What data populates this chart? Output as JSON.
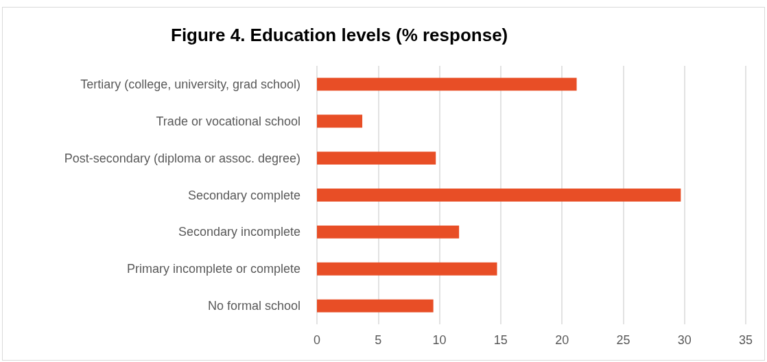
{
  "chart_data": {
    "type": "bar",
    "orientation": "horizontal",
    "title": "Figure 4. Education levels (% response)",
    "categories": [
      "Tertiary (college, university, grad school)",
      "Trade or vocational school",
      "Post-secondary (diploma or assoc. degree)",
      "Secondary complete",
      "Secondary incomplete",
      "Primary incomplete or complete",
      "No formal school"
    ],
    "values": [
      21.2,
      3.7,
      9.7,
      29.7,
      11.6,
      14.7,
      9.5
    ],
    "color": "#e84e26",
    "xlim": [
      0,
      35
    ],
    "xticks": [
      0,
      5,
      10,
      15,
      20,
      25,
      30,
      35
    ],
    "grid": "x"
  }
}
